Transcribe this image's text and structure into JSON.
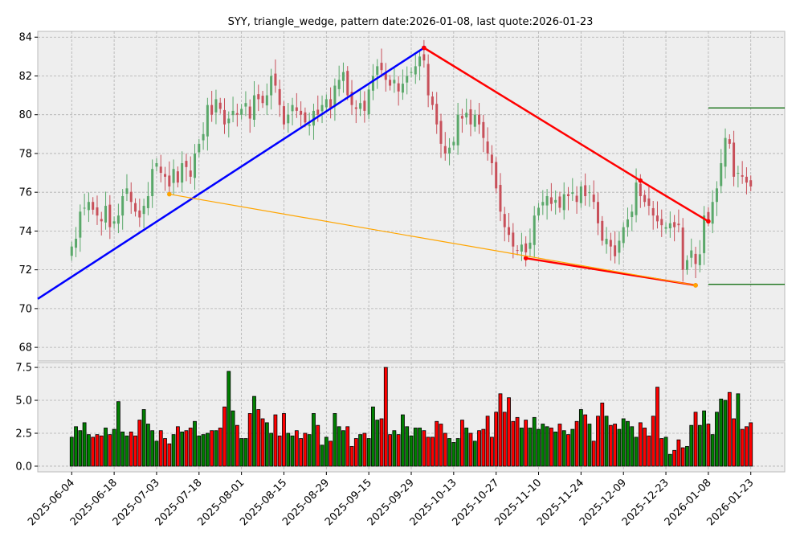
{
  "chart_data": {
    "type": "candlestick",
    "title": "SYY, triangle_wedge, pattern date:2026-01-08, last quote:2026-01-23",
    "x_tick_labels": [
      "2025-06-04",
      "2025-06-18",
      "2025-07-03",
      "2025-07-18",
      "2025-08-01",
      "2025-08-15",
      "2025-08-29",
      "2025-09-15",
      "2025-09-29",
      "2025-10-13",
      "2025-10-27",
      "2025-11-10",
      "2025-11-24",
      "2025-12-09",
      "2025-12-23",
      "2026-01-08",
      "2026-01-23"
    ],
    "x_tick_every_bars": 10,
    "xlim_bars": [
      -8,
      168
    ],
    "price": {
      "ylim": [
        67.3,
        84.3
      ],
      "yticks": [
        68,
        70,
        72,
        74,
        76,
        78,
        80,
        82,
        84
      ]
    },
    "volume": {
      "ylim": [
        -0.43,
        7.87
      ],
      "yticks": [
        0.0,
        2.5,
        5.0,
        7.5
      ],
      "tick_labels": [
        "0.0",
        "2.5",
        "5.0",
        "7.5"
      ]
    },
    "closes": [
      73.2,
      73.6,
      75.0,
      75.2,
      75.5,
      75.1,
      74.8,
      74.5,
      75.3,
      74.2,
      74.5,
      74.8,
      75.8,
      76.2,
      75.5,
      75.0,
      74.7,
      75.3,
      75.8,
      77.2,
      77.5,
      77.0,
      76.8,
      76.3,
      77.2,
      76.5,
      77.5,
      77.3,
      76.8,
      78.0,
      78.5,
      79.0,
      80.5,
      80.0,
      80.8,
      80.3,
      79.5,
      79.8,
      80.2,
      80.0,
      80.3,
      80.6,
      79.8,
      81.0,
      80.8,
      80.6,
      81.0,
      82.0,
      81.5,
      80.5,
      79.5,
      80.0,
      80.5,
      80.2,
      80.0,
      79.6,
      79.5,
      80.2,
      80.0,
      80.5,
      80.8,
      80.3,
      81.5,
      81.8,
      82.2,
      81.0,
      80.5,
      80.3,
      80.6,
      80.2,
      81.3,
      82.0,
      82.5,
      82.3,
      81.8,
      81.5,
      81.8,
      81.2,
      81.6,
      82.0,
      82.2,
      82.5,
      83.0,
      82.8,
      81.0,
      80.5,
      79.5,
      78.5,
      78.0,
      78.3,
      78.6,
      80.0,
      79.8,
      80.1,
      79.5,
      80.0,
      79.5,
      78.8,
      78.0,
      77.5,
      76.2,
      75.0,
      74.2,
      73.8,
      73.2,
      73.0,
      73.3,
      72.9,
      73.4,
      74.8,
      75.2,
      75.5,
      75.8,
      75.4,
      75.6,
      75.2,
      75.9,
      75.8,
      76.0,
      75.5,
      76.3,
      75.8,
      76.0,
      75.5,
      74.4,
      73.5,
      73.6,
      73.2,
      72.7,
      73.5,
      74.2,
      74.6,
      75.0,
      76.5,
      75.8,
      75.5,
      75.3,
      74.8,
      74.5,
      74.3,
      74.2,
      74.4,
      74.2,
      74.3,
      72.0,
      72.5,
      73.0,
      72.3,
      72.8,
      74.8,
      74.5,
      75.5,
      76.2,
      77.5,
      78.8,
      78.5,
      76.8,
      77.0,
      76.8,
      76.5,
      76.3
    ],
    "volumes_millions": [
      2.2,
      3.0,
      2.7,
      3.3,
      2.4,
      2.2,
      2.4,
      2.3,
      2.9,
      2.4,
      2.8,
      4.9,
      2.6,
      2.3,
      2.6,
      2.3,
      3.5,
      4.3,
      3.2,
      2.7,
      1.9,
      2.7,
      2.1,
      1.7,
      2.4,
      3.0,
      2.6,
      2.7,
      2.9,
      3.4,
      2.3,
      2.4,
      2.5,
      2.7,
      2.7,
      2.9,
      4.5,
      7.2,
      4.2,
      3.1,
      2.1,
      2.1,
      4.0,
      5.3,
      4.3,
      3.6,
      3.3,
      2.5,
      3.9,
      2.3,
      4.0,
      2.5,
      2.3,
      2.7,
      2.1,
      2.5,
      2.4,
      4.0,
      3.1,
      1.6,
      2.2,
      1.9,
      4.0,
      3.0,
      2.7,
      3.0,
      1.5,
      2.1,
      2.4,
      2.5,
      2.1,
      4.5,
      3.5,
      3.6,
      7.5,
      2.4,
      2.7,
      2.4,
      3.9,
      3.0,
      2.3,
      2.9,
      2.9,
      2.7,
      2.2,
      2.2,
      3.4,
      3.2,
      2.5,
      2.1,
      1.8,
      2.1,
      3.5,
      2.9,
      2.5,
      1.9,
      2.7,
      2.8,
      3.8,
      2.2,
      4.1,
      5.5,
      4.1,
      5.2,
      3.4,
      3.7,
      2.9,
      3.5,
      2.9,
      3.7,
      2.8,
      3.2,
      3.0,
      2.9,
      2.6,
      3.2,
      2.7,
      2.4,
      2.8,
      3.4,
      4.3,
      3.9,
      3.2,
      1.9,
      3.8,
      4.8,
      3.8,
      3.1,
      3.2,
      2.8,
      3.6,
      3.4,
      3.0,
      2.2,
      3.3,
      2.9,
      2.3,
      3.8,
      6.0,
      2.1,
      2.2,
      0.9,
      1.2,
      2.0,
      1.4,
      1.5,
      3.1,
      4.1,
      3.1,
      4.2,
      3.2,
      2.4,
      4.1,
      5.1,
      5.0,
      5.6,
      3.6,
      5.5,
      2.8,
      3.0,
      3.3
    ],
    "pattern_lines": [
      {
        "name": "upper-rising",
        "color": "#0000ff",
        "points": [
          [
            -8,
            70.5
          ],
          [
            83,
            83.45
          ]
        ]
      },
      {
        "name": "upper-falling",
        "color": "#ff0000",
        "points": [
          [
            83,
            83.45
          ],
          [
            134,
            76.6
          ],
          [
            150,
            74.5
          ]
        ]
      },
      {
        "name": "lower-falling",
        "color": "#ff0000",
        "points": [
          [
            107,
            72.6
          ],
          [
            147,
            71.2
          ]
        ]
      },
      {
        "name": "support",
        "color": "#ffa500",
        "points": [
          [
            23,
            75.9
          ],
          [
            147,
            71.2
          ]
        ]
      }
    ],
    "levels": [
      {
        "value": 80.35,
        "from_bar": 150,
        "color": "#006400"
      },
      {
        "value": 71.25,
        "from_bar": 150,
        "color": "#006400"
      }
    ],
    "colors": {
      "up": "#5aa86a",
      "down": "#c8505a",
      "vol_up": "#008000",
      "vol_down": "#ff0000",
      "bg": "#eeeeee"
    }
  }
}
